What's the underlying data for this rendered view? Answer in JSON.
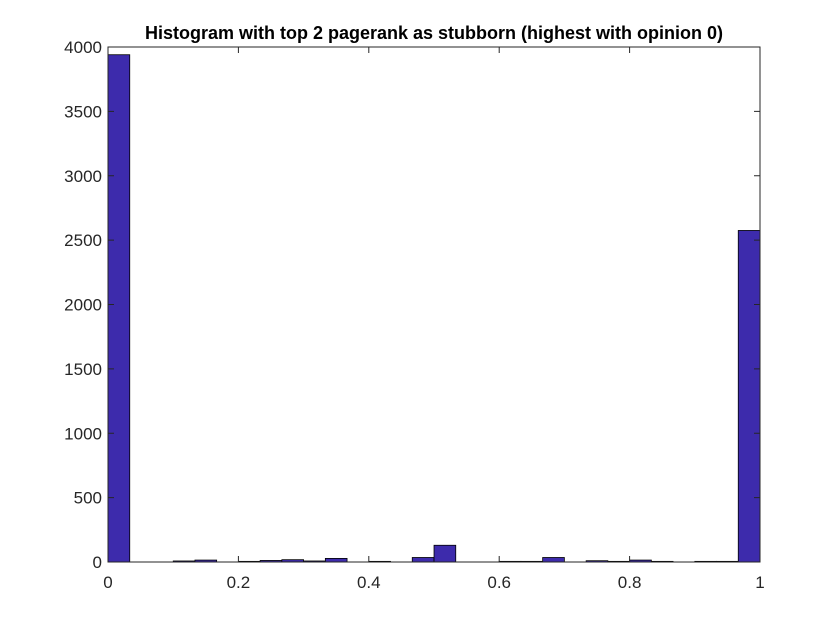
{
  "chart_data": {
    "type": "bar",
    "title": "Histogram with top 2 pagerank as stubborn (highest with opinion 0)",
    "xlabel": "",
    "ylabel": "",
    "xlim": [
      0,
      1
    ],
    "ylim": [
      0,
      4000
    ],
    "xticks": [
      0,
      0.2,
      0.4,
      0.6,
      0.8,
      1
    ],
    "xtick_labels": [
      "0",
      "0.2",
      "0.4",
      "0.6",
      "0.8",
      "1"
    ],
    "yticks": [
      0,
      500,
      1000,
      1500,
      2000,
      2500,
      3000,
      3500,
      4000
    ],
    "ytick_labels": [
      "0",
      "500",
      "1000",
      "1500",
      "2000",
      "2500",
      "3000",
      "3500",
      "4000"
    ],
    "bin_width": 0.0333,
    "bin_centers": [
      0.0167,
      0.05,
      0.0833,
      0.1167,
      0.15,
      0.1833,
      0.2167,
      0.25,
      0.2833,
      0.3167,
      0.35,
      0.3833,
      0.4167,
      0.45,
      0.4833,
      0.5167,
      0.55,
      0.5833,
      0.6167,
      0.65,
      0.6833,
      0.7167,
      0.75,
      0.7833,
      0.8167,
      0.85,
      0.8833,
      0.9167,
      0.95,
      0.9833
    ],
    "values": [
      3940,
      0,
      0,
      8,
      15,
      0,
      5,
      12,
      18,
      8,
      28,
      0,
      5,
      0,
      35,
      130,
      0,
      0,
      5,
      5,
      35,
      0,
      10,
      5,
      15,
      5,
      0,
      5,
      5,
      2575
    ],
    "bar_color": "#3d2bac",
    "edge_color": "#000000",
    "grid": false,
    "legend": "none"
  }
}
